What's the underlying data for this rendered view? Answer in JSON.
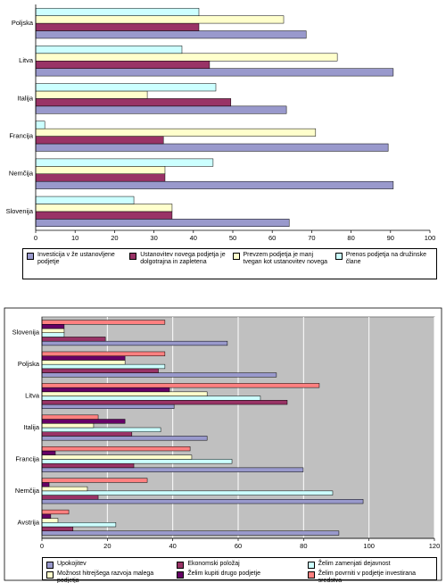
{
  "chart_data": [
    {
      "type": "hbar",
      "categories": [
        "Poljska",
        "Litva",
        "Italija",
        "Francija",
        "Nemčija",
        "Slovenija"
      ],
      "xlim": [
        0,
        100
      ],
      "xticks": [
        0,
        10,
        20,
        30,
        40,
        50,
        60,
        70,
        80,
        90,
        100
      ],
      "grid": false,
      "series": [
        {
          "name": "Investicija v že ustanovljene podjetje",
          "color": "#9999cc",
          "values": [
            68.6,
            90.7,
            63.6,
            89.4,
            90.7,
            64.3
          ]
        },
        {
          "name": "Ustanovitev novega podjetja je dolgotrajna in zapletena",
          "color": "#993366",
          "values": [
            41.4,
            44.1,
            49.5,
            32.4,
            32.8,
            34.6
          ]
        },
        {
          "name": "Prevzem podjetja je manj tvegan kot ustanovitev novega",
          "color": "#ffffcc",
          "values": [
            62.9,
            76.5,
            28.3,
            71.0,
            32.8,
            34.6
          ]
        },
        {
          "name": "Prenos podjetja na družinske člane",
          "color": "#ccffff",
          "values": [
            41.4,
            37.1,
            45.7,
            2.3,
            45.0,
            24.9
          ]
        }
      ]
    },
    {
      "type": "hbar",
      "categories": [
        "Slovenija",
        "Poljska",
        "Litva",
        "Italija",
        "Francija",
        "Nemčija",
        "Avstrija"
      ],
      "xlim": [
        0,
        120
      ],
      "xticks": [
        0,
        20,
        40,
        60,
        80,
        100,
        120
      ],
      "grid": true,
      "series": [
        {
          "name": "Upokojitev",
          "color": "#9999cc",
          "values": [
            56.7,
            71.7,
            40.4,
            50.5,
            79.9,
            98.2,
            90.8
          ]
        },
        {
          "name": "Ekonomski položaj",
          "color": "#993366",
          "values": [
            19.4,
            35.6,
            75.0,
            27.5,
            28.1,
            17.2,
            9.5
          ]
        },
        {
          "name": "Želim zamenjati dejavnost",
          "color": "#ccffff",
          "values": [
            6.8,
            37.6,
            66.8,
            36.3,
            58.1,
            88.9,
            22.6
          ]
        },
        {
          "name": "Možnost hitrejšega razvoja malega podjetja",
          "color": "#ffffcc",
          "values": [
            6.8,
            25.4,
            50.5,
            15.8,
            45.8,
            13.9,
            4.9
          ]
        },
        {
          "name": "Želim kupiti drugo podjetje",
          "color": "#660066",
          "values": [
            6.8,
            25.4,
            39.0,
            25.4,
            4.1,
            2.2,
            2.7
          ]
        },
        {
          "name": "Želim povrniti v podjetje investirana sredstva",
          "color": "#ff8080",
          "values": [
            37.6,
            37.6,
            84.8,
            17.2,
            45.3,
            32.2,
            8.2
          ]
        }
      ]
    }
  ]
}
